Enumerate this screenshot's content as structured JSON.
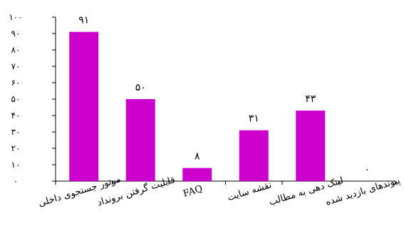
{
  "chart_data": {
    "type": "bar",
    "categories": [
      "موتور جستجوی داخلی",
      "قابلیت گرفتن برونداد",
      "FAQ",
      "نقشه سایت",
      "لینک دهی به مطالب",
      "پیوندهای بازدید شده"
    ],
    "values": [
      91,
      50,
      8,
      31,
      43,
      0
    ],
    "value_labels": [
      "۹۱",
      "۵۰",
      "۸",
      "۳۱",
      "۴۳",
      "۰"
    ],
    "y_ticks": [
      0,
      10,
      20,
      30,
      40,
      50,
      60,
      70,
      80,
      90,
      100
    ],
    "y_tick_labels": [
      "۰",
      "۱۰",
      "۲۰",
      "۳۰",
      "۴۰",
      "۵۰",
      "۶۰",
      "۷۰",
      "۸۰",
      "۹۰",
      "۱۰۰"
    ],
    "ylim": [
      0,
      100
    ],
    "title": "",
    "xlabel": "",
    "ylabel": "",
    "grid": false,
    "legend": "none",
    "bar_color": "#CC00CC",
    "axis_color": "#000000"
  }
}
